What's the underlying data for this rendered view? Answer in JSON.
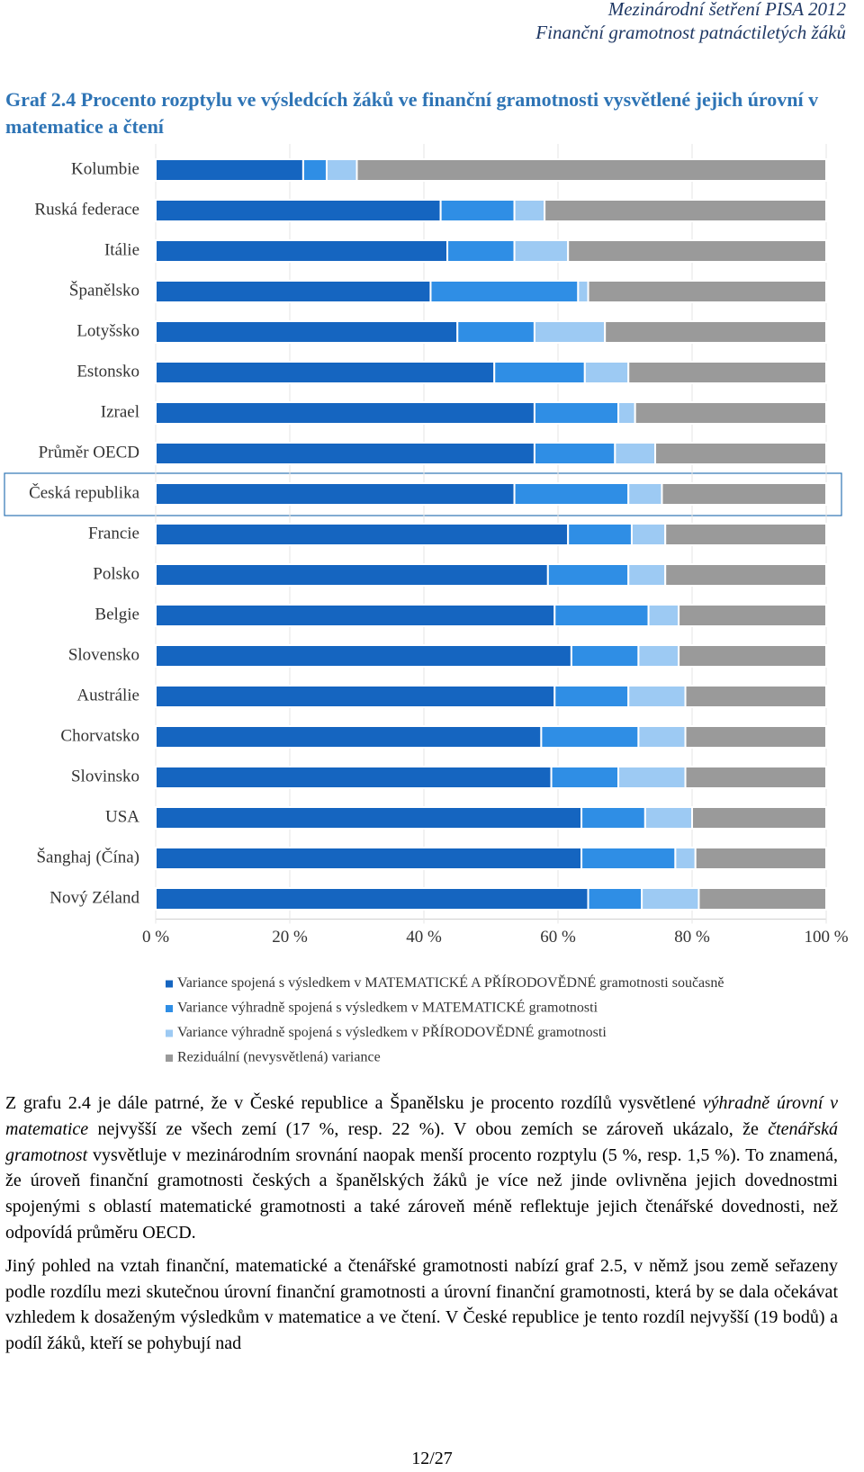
{
  "header": {
    "lines": [
      "Mezinárodní šetření PISA 2012",
      "Finanční gramotnost patnáctiletých žáků"
    ]
  },
  "chart_data": {
    "type": "bar",
    "orientation": "horizontal",
    "stacked": true,
    "title": "Graf 2.4 Procento rozptylu ve výsledcích žáků ve finanční gramotnosti vysvětlené jejich úrovní v matematice a čtení",
    "categories": [
      "Kolumbie",
      "Ruská federace",
      "Itálie",
      "Španělsko",
      "Lotyšsko",
      "Estonsko",
      "Izrael",
      "Průměr OECD",
      "Česká republika",
      "Francie",
      "Polsko",
      "Belgie",
      "Slovensko",
      "Austrálie",
      "Chorvatsko",
      "Slovinsko",
      "USA",
      "Šanghaj (Čína)",
      "Nový Zéland"
    ],
    "series": [
      {
        "name": "Variance  spojená s výsledkem v MATEMATICKÉ A PŘÍRODOVĚDNÉ gramotnosti současně",
        "color": "#1565c0",
        "values": [
          22,
          42.5,
          43.5,
          41,
          45,
          50.5,
          56.5,
          56.5,
          53.5,
          61.5,
          58.5,
          59.5,
          62,
          59.5,
          57.5,
          59,
          63.5,
          63.5,
          64.5
        ]
      },
      {
        "name": "Variance  výhradně  spojená s  výsledkem v MATEMATICKÉ gramotnosti",
        "color": "#2f8ee5",
        "values": [
          3.5,
          11,
          10,
          22,
          11.5,
          13.5,
          12.5,
          12,
          17,
          9.5,
          12,
          14,
          10,
          11,
          14.5,
          10,
          9.5,
          14,
          8
        ]
      },
      {
        "name": "Variance  výhradně  spojená s  výsledkem v PŘÍRODOVĚDNÉ gramotnosti",
        "color": "#9dcaf3",
        "values": [
          4.5,
          4.5,
          8,
          1.5,
          10.5,
          6.5,
          2.5,
          6,
          5,
          5,
          5.5,
          4.5,
          6,
          8.5,
          7,
          10,
          7,
          3,
          8.5
        ]
      },
      {
        "name": "Reziduální (nevysvětlená) variance",
        "color": "#9a9a9a",
        "values": [
          70,
          42,
          38.5,
          35.5,
          33,
          29.5,
          28.5,
          25.5,
          24.5,
          24,
          24,
          22,
          22,
          21,
          21,
          21,
          20,
          19.5,
          19
        ]
      }
    ],
    "xlim": [
      0,
      100
    ],
    "xticks": [
      {
        "value": 0,
        "label": "0 %"
      },
      {
        "value": 20,
        "label": "20 %"
      },
      {
        "value": 40,
        "label": "40 %"
      },
      {
        "value": 60,
        "label": "60 %"
      },
      {
        "value": 80,
        "label": "80 %"
      },
      {
        "value": 100,
        "label": "100 %"
      }
    ]
  },
  "body": {
    "paragraphs": [
      [
        "Z grafu 2.4 je dále patrné, že v České republice a Španělsku je procento rozdílů vysvětlené ",
        {
          "text": "výhradně úrovní v matematice",
          "style": "italic"
        },
        " nejvyšší ze všech zemí (17 %, resp. 22 %). V obou zemích se zároveň ukázalo, že ",
        {
          "text": "čtenářská gramotnost",
          "style": "italic"
        },
        " vysvětluje v mezinárodním srovnání naopak menší procento rozptylu (5 %, resp. 1,5 %). To znamená, že úroveň finanční gramotnosti českých a španělských žáků je více než jinde ovlivněna jejich dovednostmi spojenými s  oblastí matematické gramotnosti a také zároveň méně reflektuje jejich čtenářské dovednosti, než odpovídá průměru OECD."
      ],
      [
        "Jiný pohled na vztah finanční, matematické a čtenářské gramotnosti nabízí graf 2.5, v němž jsou země seřazeny podle rozdílu mezi skutečnou úrovní finanční gramotnosti a úrovní finanční gramotnosti, která by se dala očekávat vzhledem k dosaženým výsledkům v matematice a ve čtení. V České republice je tento rozdíl nejvyšší (19 bodů) a podíl žáků, kteří se pohybují nad"
      ]
    ]
  },
  "footer": {
    "page": "12/27"
  }
}
